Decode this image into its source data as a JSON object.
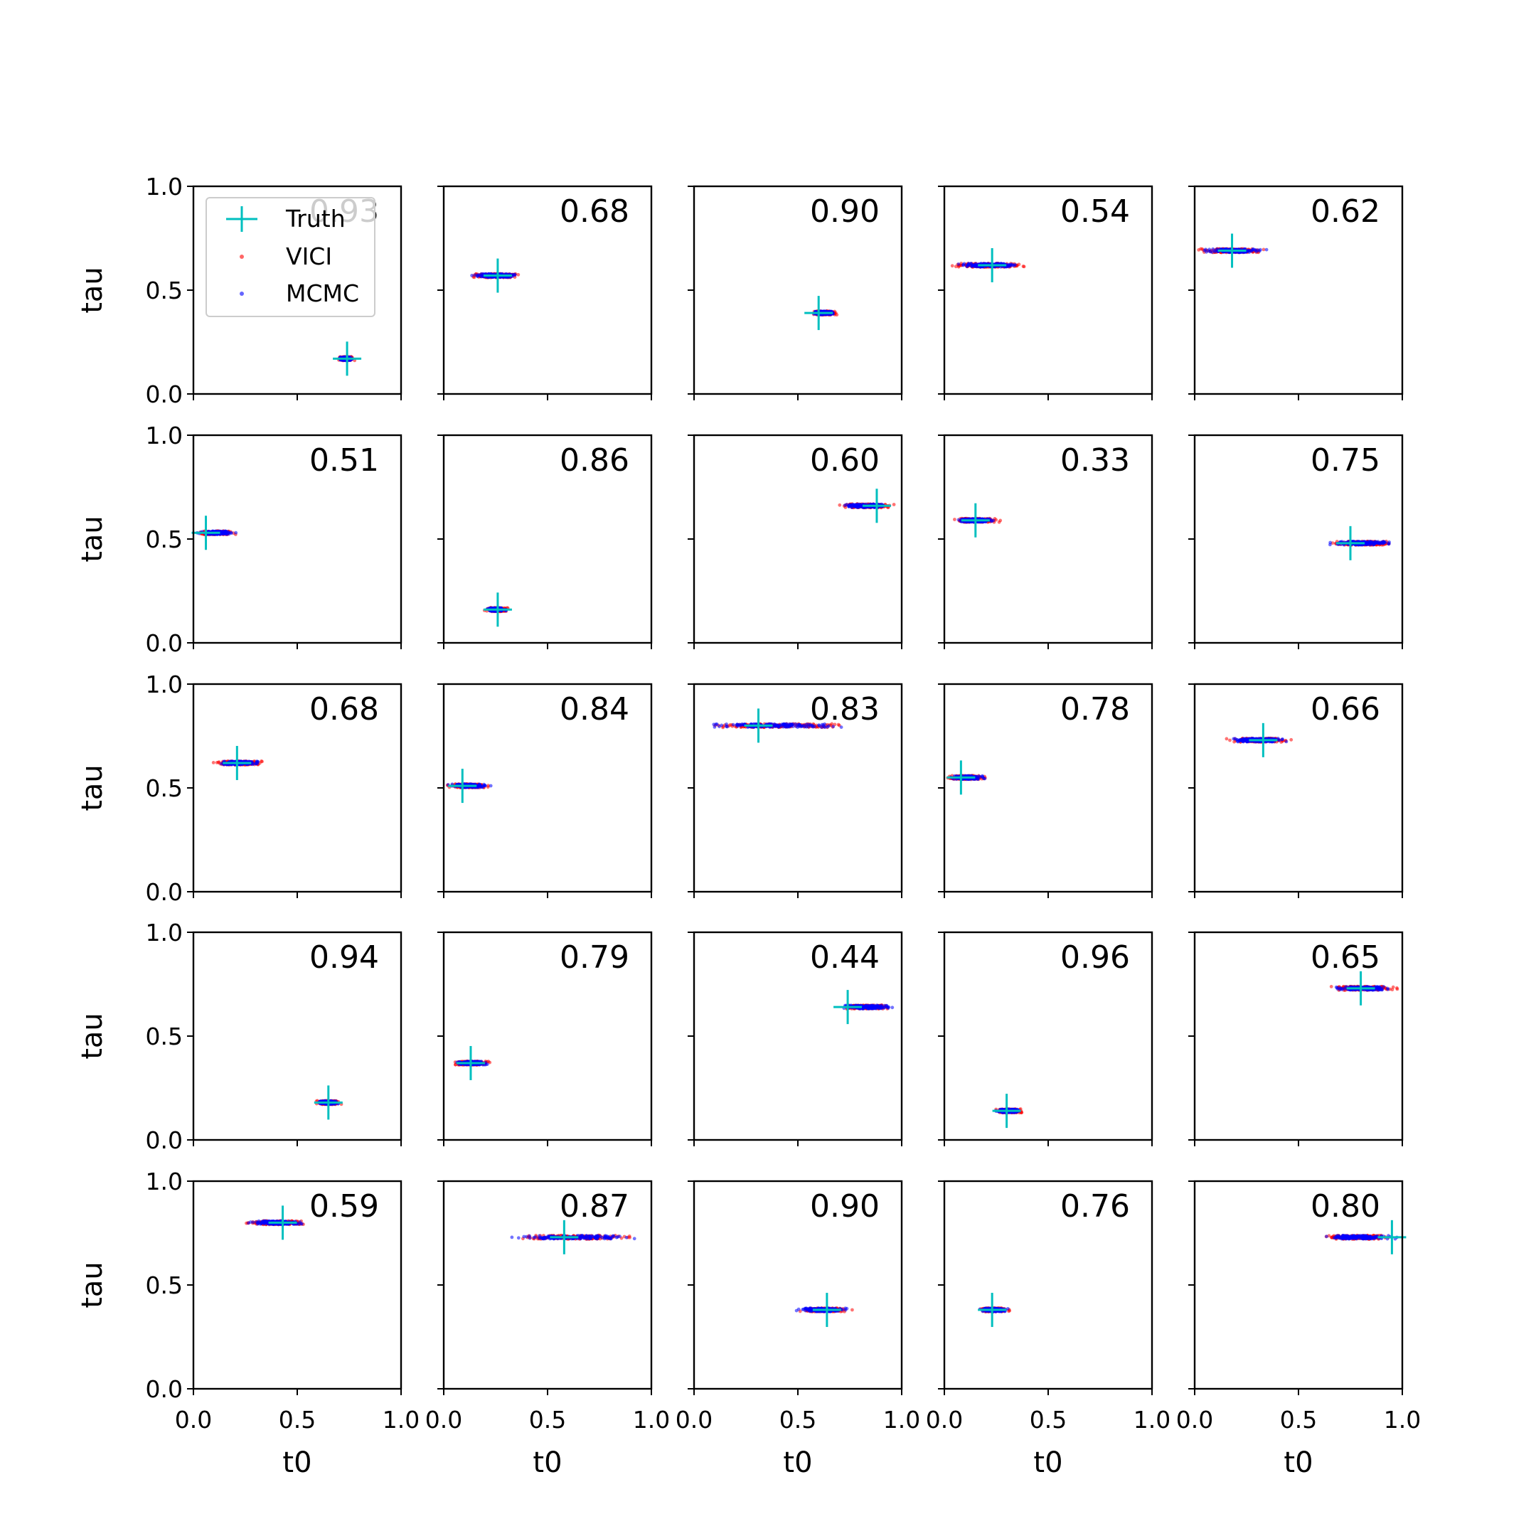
{
  "chart_data": {
    "type": "scatter",
    "layout": "5x5 grid of subplots",
    "xlabel": "t0",
    "ylabel": "tau",
    "xlim": [
      0,
      1
    ],
    "ylim": [
      0,
      1
    ],
    "x_ticks": [
      "0.0",
      "0.5",
      "1.0"
    ],
    "y_ticks": [
      "0.0",
      "0.5",
      "1.0"
    ],
    "grid": false,
    "legend": {
      "placement": "top-left of first panel",
      "entries": [
        {
          "label": "Truth",
          "marker": "cross",
          "color": "#00bfbf"
        },
        {
          "label": "VICI",
          "marker": "dot",
          "color": "#ff0000"
        },
        {
          "label": "MCMC",
          "marker": "dot",
          "color": "#0000ff"
        }
      ]
    },
    "panels": [
      {
        "label": "0.93",
        "truth": [
          0.74,
          0.17
        ],
        "t0_range": [
          0.69,
          0.78
        ],
        "tau": 0.17
      },
      {
        "label": "0.68",
        "truth": [
          0.26,
          0.57
        ],
        "t0_range": [
          0.1,
          0.39
        ],
        "tau": 0.57
      },
      {
        "label": "0.90",
        "truth": [
          0.6,
          0.39
        ],
        "t0_range": [
          0.55,
          0.7
        ],
        "tau": 0.39
      },
      {
        "label": "0.54",
        "truth": [
          0.23,
          0.62
        ],
        "t0_range": [
          0.0,
          0.42
        ],
        "tau": 0.62
      },
      {
        "label": "0.62",
        "truth": [
          0.18,
          0.69
        ],
        "t0_range": [
          0.0,
          0.37
        ],
        "tau": 0.69
      },
      {
        "label": "0.51",
        "truth": [
          0.06,
          0.53
        ],
        "t0_range": [
          0.0,
          0.22
        ],
        "tau": 0.53
      },
      {
        "label": "0.86",
        "truth": [
          0.26,
          0.16
        ],
        "t0_range": [
          0.19,
          0.32
        ],
        "tau": 0.16
      },
      {
        "label": "0.60",
        "truth": [
          0.88,
          0.66
        ],
        "t0_range": [
          0.68,
          0.99
        ],
        "tau": 0.66
      },
      {
        "label": "0.33",
        "truth": [
          0.15,
          0.59
        ],
        "t0_range": [
          0.02,
          0.28
        ],
        "tau": 0.59
      },
      {
        "label": "0.75",
        "truth": [
          0.75,
          0.48
        ],
        "t0_range": [
          0.62,
          0.99
        ],
        "tau": 0.48
      },
      {
        "label": "0.68",
        "truth": [
          0.21,
          0.62
        ],
        "t0_range": [
          0.09,
          0.35
        ],
        "tau": 0.62
      },
      {
        "label": "0.84",
        "truth": [
          0.09,
          0.51
        ],
        "t0_range": [
          0.0,
          0.25
        ],
        "tau": 0.51
      },
      {
        "label": "0.83",
        "truth": [
          0.31,
          0.8
        ],
        "t0_range": [
          0.0,
          0.81
        ],
        "tau": 0.8
      },
      {
        "label": "0.78",
        "truth": [
          0.08,
          0.55
        ],
        "t0_range": [
          0.0,
          0.22
        ],
        "tau": 0.55
      },
      {
        "label": "0.66",
        "truth": [
          0.33,
          0.73
        ],
        "t0_range": [
          0.14,
          0.48
        ],
        "tau": 0.73
      },
      {
        "label": "0.94",
        "truth": [
          0.65,
          0.18
        ],
        "t0_range": [
          0.58,
          0.72
        ],
        "tau": 0.18
      },
      {
        "label": "0.79",
        "truth": [
          0.13,
          0.37
        ],
        "t0_range": [
          0.03,
          0.24
        ],
        "tau": 0.37
      },
      {
        "label": "0.44",
        "truth": [
          0.74,
          0.64
        ],
        "t0_range": [
          0.68,
          0.98
        ],
        "tau": 0.64
      },
      {
        "label": "0.96",
        "truth": [
          0.3,
          0.14
        ],
        "t0_range": [
          0.23,
          0.39
        ],
        "tau": 0.14
      },
      {
        "label": "0.65",
        "truth": [
          0.8,
          0.73
        ],
        "t0_range": [
          0.63,
          1.0
        ],
        "tau": 0.73
      },
      {
        "label": "0.59",
        "truth": [
          0.43,
          0.8
        ],
        "t0_range": [
          0.23,
          0.58
        ],
        "tau": 0.8
      },
      {
        "label": "0.87",
        "truth": [
          0.58,
          0.73
        ],
        "t0_range": [
          0.29,
          0.98
        ],
        "tau": 0.73
      },
      {
        "label": "0.90",
        "truth": [
          0.64,
          0.38
        ],
        "t0_range": [
          0.47,
          0.77
        ],
        "tau": 0.38
      },
      {
        "label": "0.76",
        "truth": [
          0.23,
          0.38
        ],
        "t0_range": [
          0.15,
          0.33
        ],
        "tau": 0.38
      },
      {
        "label": "0.80",
        "truth": [
          0.95,
          0.73
        ],
        "t0_range": [
          0.58,
          1.0
        ],
        "tau": 0.73
      }
    ]
  }
}
